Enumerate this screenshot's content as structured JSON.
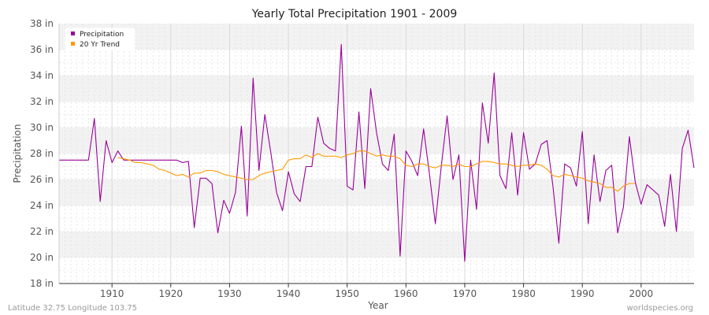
{
  "chart_data": {
    "type": "line",
    "title": "Yearly Total Precipitation 1901 - 2009",
    "xlabel": "Year",
    "ylabel": "Precipitation",
    "xlim": [
      1901,
      2009
    ],
    "ylim": [
      18,
      38
    ],
    "y_ticks": [
      {
        "value": 18,
        "label": "18 in"
      },
      {
        "value": 20,
        "label": "20 in"
      },
      {
        "value": 22,
        "label": "22 in"
      },
      {
        "value": 24,
        "label": "24 in"
      },
      {
        "value": 26,
        "label": "26 in"
      },
      {
        "value": 28,
        "label": "28 in"
      },
      {
        "value": 30,
        "label": "30 in"
      },
      {
        "value": 32,
        "label": "32 in"
      },
      {
        "value": 34,
        "label": "34 in"
      },
      {
        "value": 36,
        "label": "36 in"
      },
      {
        "value": 38,
        "label": "38 in"
      }
    ],
    "x_ticks": [
      {
        "value": 1910,
        "label": "1910"
      },
      {
        "value": 1920,
        "label": "1920"
      },
      {
        "value": 1930,
        "label": "1930"
      },
      {
        "value": 1940,
        "label": "1940"
      },
      {
        "value": 1950,
        "label": "1950"
      },
      {
        "value": 1960,
        "label": "1960"
      },
      {
        "value": 1970,
        "label": "1970"
      },
      {
        "value": 1980,
        "label": "1980"
      },
      {
        "value": 1990,
        "label": "1990"
      },
      {
        "value": 2000,
        "label": "2000"
      }
    ],
    "grid": true,
    "legend_position": "top-left",
    "series": [
      {
        "name": "Precipitation",
        "color": "#990099",
        "x": [
          1901,
          1902,
          1903,
          1904,
          1905,
          1906,
          1907,
          1908,
          1909,
          1910,
          1911,
          1912,
          1913,
          1914,
          1915,
          1916,
          1917,
          1918,
          1919,
          1920,
          1921,
          1922,
          1923,
          1924,
          1925,
          1926,
          1927,
          1928,
          1929,
          1930,
          1931,
          1932,
          1933,
          1934,
          1935,
          1936,
          1937,
          1938,
          1939,
          1940,
          1941,
          1942,
          1943,
          1944,
          1945,
          1946,
          1947,
          1948,
          1949,
          1950,
          1951,
          1952,
          1953,
          1954,
          1955,
          1956,
          1957,
          1958,
          1959,
          1960,
          1961,
          1962,
          1963,
          1964,
          1965,
          1966,
          1967,
          1968,
          1969,
          1970,
          1971,
          1972,
          1973,
          1974,
          1975,
          1976,
          1977,
          1978,
          1979,
          1980,
          1981,
          1982,
          1983,
          1984,
          1985,
          1986,
          1987,
          1988,
          1989,
          1990,
          1991,
          1992,
          1993,
          1994,
          1995,
          1996,
          1997,
          1998,
          1999,
          2000,
          2001,
          2002,
          2003,
          2004,
          2005,
          2006,
          2007,
          2008,
          2009
        ],
        "values": [
          27.5,
          27.5,
          27.5,
          27.5,
          27.5,
          27.5,
          30.7,
          24.3,
          29.0,
          27.3,
          28.2,
          27.5,
          27.5,
          27.5,
          27.5,
          27.5,
          27.5,
          27.5,
          27.5,
          27.5,
          27.5,
          27.3,
          27.4,
          22.3,
          26.1,
          26.1,
          25.7,
          21.9,
          24.4,
          23.4,
          25.0,
          30.1,
          23.2,
          33.8,
          26.7,
          31.0,
          28.1,
          25.0,
          23.6,
          26.6,
          24.9,
          24.3,
          27.0,
          27.0,
          30.8,
          28.8,
          28.4,
          28.2,
          36.4,
          25.5,
          25.2,
          31.2,
          25.3,
          33.0,
          29.6,
          27.2,
          26.7,
          29.5,
          20.1,
          28.2,
          27.4,
          26.3,
          29.9,
          26.4,
          22.6,
          27.0,
          30.9,
          26.0,
          27.9,
          19.7,
          27.5,
          23.7,
          31.9,
          28.8,
          34.2,
          26.3,
          25.3,
          29.6,
          24.8,
          29.6,
          26.8,
          27.2,
          28.7,
          29.0,
          25.5,
          21.1,
          27.2,
          26.9,
          25.5,
          29.7,
          22.6,
          27.9,
          24.3,
          26.7,
          27.1,
          21.9,
          23.9,
          29.3,
          25.8,
          24.1,
          25.6,
          25.2,
          24.8,
          22.4,
          26.4,
          22.0,
          28.4,
          29.8,
          26.9
        ]
      },
      {
        "name": "20 Yr Trend",
        "color": "#ff9900",
        "x": [
          1911,
          1912,
          1913,
          1914,
          1915,
          1916,
          1917,
          1918,
          1919,
          1920,
          1921,
          1922,
          1923,
          1924,
          1925,
          1926,
          1927,
          1928,
          1929,
          1930,
          1931,
          1932,
          1933,
          1934,
          1935,
          1936,
          1937,
          1938,
          1939,
          1940,
          1941,
          1942,
          1943,
          1944,
          1945,
          1946,
          1947,
          1948,
          1949,
          1950,
          1951,
          1952,
          1953,
          1954,
          1955,
          1956,
          1957,
          1958,
          1959,
          1960,
          1961,
          1962,
          1963,
          1964,
          1965,
          1966,
          1967,
          1968,
          1969,
          1970,
          1971,
          1972,
          1973,
          1974,
          1975,
          1976,
          1977,
          1978,
          1979,
          1980,
          1981,
          1982,
          1983,
          1984,
          1985,
          1986,
          1987,
          1988,
          1989,
          1990,
          1991,
          1992,
          1993,
          1994,
          1995,
          1996,
          1997,
          1998,
          1999
        ],
        "values": [
          27.7,
          27.6,
          27.5,
          27.3,
          27.3,
          27.2,
          27.1,
          26.8,
          26.7,
          26.5,
          26.3,
          26.4,
          26.2,
          26.5,
          26.5,
          26.7,
          26.7,
          26.6,
          26.4,
          26.3,
          26.2,
          26.1,
          26.0,
          26.0,
          26.3,
          26.5,
          26.6,
          26.7,
          26.8,
          27.5,
          27.6,
          27.6,
          27.9,
          27.7,
          28.0,
          27.8,
          27.8,
          27.8,
          27.7,
          27.9,
          28.0,
          28.2,
          28.2,
          28.0,
          27.8,
          27.9,
          27.8,
          27.8,
          27.6,
          27.1,
          27.0,
          27.2,
          27.2,
          27.0,
          26.9,
          27.1,
          27.1,
          27.0,
          27.2,
          27.0,
          27.0,
          27.2,
          27.4,
          27.4,
          27.3,
          27.2,
          27.2,
          27.1,
          27.0,
          27.1,
          27.1,
          27.2,
          27.1,
          26.8,
          26.3,
          26.2,
          26.4,
          26.3,
          26.2,
          26.1,
          25.9,
          25.8,
          25.7,
          25.4,
          25.4,
          25.1,
          25.5,
          25.7,
          25.7
        ]
      }
    ],
    "footer_left": "Latitude 32.75 Longitude 103.75",
    "footer_right": "worldspecies.org"
  }
}
